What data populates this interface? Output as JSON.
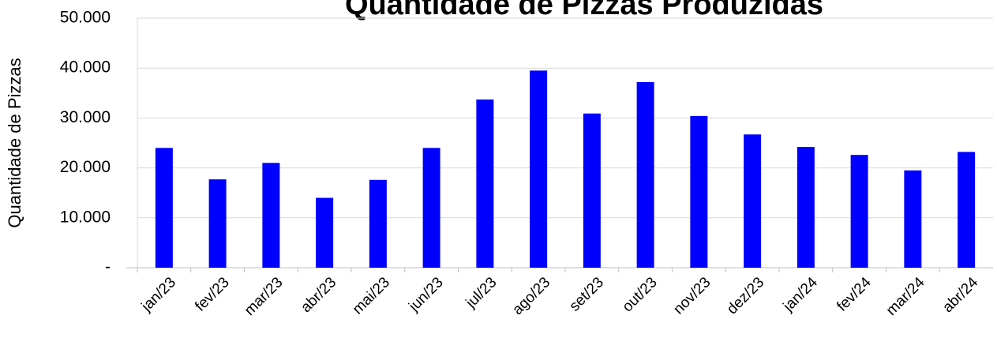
{
  "chart_data": {
    "type": "bar",
    "title": "Quantidade de Pizzas Produzidas",
    "y_label": "Quantidade de Pizzas",
    "categories": [
      "jan/23",
      "fev/23",
      "mar/23",
      "abr/23",
      "mai/23",
      "jun/23",
      "jul/23",
      "ago/23",
      "set/23",
      "out/23",
      "nov/23",
      "dez/23",
      "jan/24",
      "fev/24",
      "mar/24",
      "abr/24"
    ],
    "values": [
      24000,
      17700,
      21000,
      14000,
      17600,
      24000,
      33700,
      39500,
      30900,
      37200,
      30400,
      26700,
      24200,
      22600,
      19500,
      23200
    ],
    "color": "#0000ff",
    "ylim": [
      0,
      50000
    ],
    "yticks": [
      {
        "value": 0,
        "label": "-"
      },
      {
        "value": 10000,
        "label": "10.000"
      },
      {
        "value": 20000,
        "label": "20.000"
      },
      {
        "value": 30000,
        "label": "30.000"
      },
      {
        "value": 40000,
        "label": "40.000"
      },
      {
        "value": 50000,
        "label": "50.000"
      }
    ],
    "grid": true
  }
}
